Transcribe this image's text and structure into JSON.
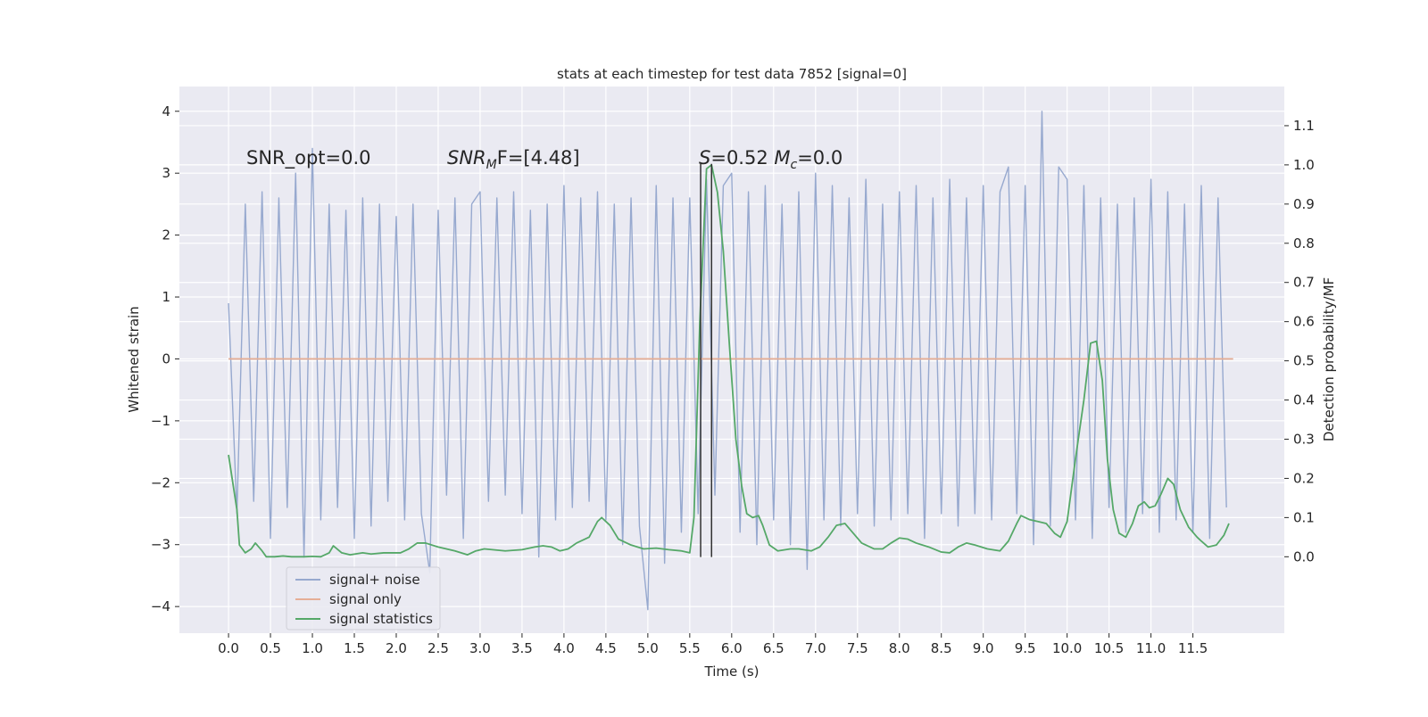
{
  "chart_data": {
    "type": "line",
    "title": "stats at each timestep for test data 7852 [signal=0]",
    "xlabel": "Time (s)",
    "ylabel": "Whitened strain",
    "y2label": "Detection probability/MF",
    "xlim": [
      -0.586,
      12.59
    ],
    "ylim": [
      -4.43,
      4.4
    ],
    "y2lim": [
      -0.195,
      1.2
    ],
    "xticks": [
      {
        "value": 0,
        "label": "0.0"
      },
      0.5,
      {
        "value": 1,
        "label": "1.0"
      },
      1.5,
      {
        "value": 2,
        "label": "2.0"
      },
      2.5,
      {
        "value": 3,
        "label": "3.0"
      },
      3.5,
      {
        "value": 4,
        "label": "4.0"
      },
      4.5,
      {
        "value": 5,
        "label": "5.0"
      },
      5.5,
      {
        "value": 6,
        "label": "6.0"
      },
      6.5,
      {
        "value": 7,
        "label": "7.0"
      },
      7.5,
      {
        "value": 8,
        "label": "8.0"
      },
      8.5,
      {
        "value": 9,
        "label": "9.0"
      },
      9.5,
      {
        "value": 10,
        "label": "10.0"
      },
      10.5,
      {
        "value": 11,
        "label": "11.0"
      },
      11.5
    ],
    "yticks": [
      {
        "value": -4,
        "label": "−4"
      },
      {
        "value": -3,
        "label": "−3"
      },
      {
        "value": -2,
        "label": "−2"
      },
      {
        "value": -1,
        "label": "−1"
      },
      0,
      1,
      2,
      3,
      4
    ],
    "y2ticks": [
      {
        "value": 0,
        "label": "0.0"
      },
      0.1,
      0.2,
      0.3,
      0.4,
      0.5,
      0.6,
      0.7,
      0.8,
      0.9,
      {
        "value": 1,
        "label": "1.0"
      },
      1.1
    ],
    "grid": true,
    "legend": "lower left",
    "series": [
      {
        "name": "signal+ noise",
        "color": "#97a9cf",
        "x": [
          0.0,
          0.1,
          0.2,
          0.3,
          0.4,
          0.5,
          0.6,
          0.7,
          0.8,
          0.9,
          1.0,
          1.1,
          1.2,
          1.3,
          1.4,
          1.5,
          1.6,
          1.7,
          1.8,
          1.9,
          2.0,
          2.1,
          2.2,
          2.3,
          2.4,
          2.5,
          2.6,
          2.7,
          2.8,
          2.9,
          3.0,
          3.1,
          3.2,
          3.3,
          3.4,
          3.5,
          3.6,
          3.7,
          3.8,
          3.9,
          4.0,
          4.1,
          4.2,
          4.3,
          4.4,
          4.5,
          4.6,
          4.7,
          4.8,
          4.9,
          5.0,
          5.1,
          5.2,
          5.3,
          5.4,
          5.5,
          5.6,
          5.7,
          5.8,
          5.9,
          6.0,
          6.1,
          6.2,
          6.3,
          6.4,
          6.5,
          6.6,
          6.7,
          6.8,
          6.9,
          7.0,
          7.1,
          7.2,
          7.3,
          7.4,
          7.5,
          7.6,
          7.7,
          7.8,
          7.9,
          8.0,
          8.1,
          8.2,
          8.3,
          8.4,
          8.5,
          8.6,
          8.7,
          8.8,
          8.9,
          9.0,
          9.1,
          9.2,
          9.3,
          9.4,
          9.5,
          9.6,
          9.7,
          9.8,
          9.9,
          10.0,
          10.1,
          10.2,
          10.3,
          10.4,
          10.5,
          10.6,
          10.7,
          10.8,
          10.9,
          11.0,
          11.1,
          11.2,
          11.3,
          11.4,
          11.5,
          11.6,
          11.7,
          11.8,
          11.9
        ],
        "values": [
          0.9,
          -2.5,
          2.5,
          -2.3,
          2.7,
          -2.9,
          2.6,
          -2.4,
          3.0,
          -3.2,
          3.4,
          -2.6,
          2.5,
          -2.4,
          2.4,
          -2.9,
          2.6,
          -2.7,
          2.5,
          -2.3,
          2.3,
          -2.6,
          2.5,
          -2.5,
          -3.45,
          2.4,
          -2.2,
          2.6,
          -2.9,
          2.5,
          2.7,
          -2.3,
          2.6,
          -2.2,
          2.7,
          -2.5,
          2.4,
          -3.2,
          2.5,
          -2.6,
          2.8,
          -2.4,
          2.6,
          -2.3,
          2.7,
          -2.6,
          2.5,
          -3.0,
          2.6,
          -2.7,
          -4.05,
          2.8,
          -3.3,
          2.6,
          -2.8,
          2.6,
          -2.5,
          2.9,
          -2.2,
          2.8,
          3.0,
          -2.8,
          2.7,
          -3.0,
          2.8,
          -2.6,
          2.5,
          -3.0,
          2.7,
          -3.4,
          3.0,
          -2.6,
          2.8,
          -2.7,
          2.6,
          -2.5,
          2.9,
          -2.7,
          2.5,
          -2.6,
          2.7,
          -2.5,
          2.8,
          -2.9,
          2.6,
          -2.5,
          2.9,
          -2.7,
          2.6,
          -2.5,
          2.8,
          -2.6,
          2.7,
          3.1,
          -2.5,
          2.8,
          -3.0,
          4.0,
          -2.7,
          3.1,
          2.9,
          -2.6,
          2.8,
          -2.9,
          2.6,
          -2.4,
          2.5,
          -2.8,
          2.6,
          -2.5,
          2.9,
          -2.8,
          2.7,
          -2.6,
          2.5,
          -2.8,
          2.8,
          -2.9,
          2.6,
          -2.4
        ]
      },
      {
        "name": "signal only",
        "color": "#e5ae96",
        "x": [
          0.0,
          11.98
        ],
        "values": [
          0,
          0
        ]
      },
      {
        "name": "signal statistics",
        "color": "#55a868",
        "axis": "y2",
        "x": [
          0,
          0.1,
          0.13,
          0.2,
          0.27,
          0.32,
          0.4,
          0.45,
          0.55,
          0.65,
          0.75,
          0.9,
          1.0,
          1.1,
          1.2,
          1.25,
          1.35,
          1.45,
          1.6,
          1.7,
          1.85,
          1.95,
          2.05,
          2.15,
          2.25,
          2.35,
          2.5,
          2.7,
          2.85,
          2.95,
          3.05,
          3.3,
          3.5,
          3.65,
          3.75,
          3.85,
          3.95,
          4.05,
          4.15,
          4.3,
          4.4,
          4.45,
          4.55,
          4.65,
          4.8,
          4.95,
          5.1,
          5.25,
          5.4,
          5.5,
          5.55,
          5.62,
          5.7,
          5.76,
          5.83,
          5.9,
          5.97,
          6.05,
          6.12,
          6.18,
          6.25,
          6.32,
          6.37,
          6.45,
          6.55,
          6.7,
          6.8,
          6.95,
          7.05,
          7.15,
          7.25,
          7.35,
          7.45,
          7.55,
          7.7,
          7.8,
          7.9,
          8.0,
          8.1,
          8.2,
          8.35,
          8.5,
          8.6,
          8.7,
          8.8,
          8.9,
          9.05,
          9.2,
          9.3,
          9.4,
          9.45,
          9.55,
          9.65,
          9.75,
          9.85,
          9.92,
          10.0,
          10.1,
          10.2,
          10.28,
          10.35,
          10.42,
          10.48,
          10.55,
          10.62,
          10.7,
          10.78,
          10.85,
          10.92,
          10.98,
          11.05,
          11.12,
          11.2,
          11.27,
          11.35,
          11.45,
          11.55,
          11.6,
          11.68,
          11.78,
          11.87,
          11.93
        ],
        "values": [
          0.26,
          0.12,
          0.03,
          0.01,
          0.02,
          0.035,
          0.015,
          0.0,
          0.0,
          0.002,
          0.0,
          0.0,
          0.001,
          0.0,
          0.01,
          0.028,
          0.01,
          0.005,
          0.01,
          0.007,
          0.01,
          0.01,
          0.01,
          0.02,
          0.035,
          0.035,
          0.025,
          0.015,
          0.005,
          0.015,
          0.02,
          0.015,
          0.018,
          0.025,
          0.028,
          0.025,
          0.015,
          0.02,
          0.035,
          0.05,
          0.09,
          0.1,
          0.08,
          0.045,
          0.03,
          0.02,
          0.022,
          0.018,
          0.015,
          0.01,
          0.1,
          0.6,
          0.99,
          1.0,
          0.93,
          0.78,
          0.55,
          0.3,
          0.18,
          0.11,
          0.1,
          0.105,
          0.08,
          0.03,
          0.015,
          0.02,
          0.02,
          0.015,
          0.025,
          0.05,
          0.08,
          0.085,
          0.06,
          0.035,
          0.02,
          0.02,
          0.035,
          0.048,
          0.045,
          0.035,
          0.025,
          0.012,
          0.01,
          0.025,
          0.035,
          0.03,
          0.02,
          0.015,
          0.04,
          0.085,
          0.105,
          0.095,
          0.09,
          0.085,
          0.06,
          0.05,
          0.09,
          0.25,
          0.4,
          0.545,
          0.55,
          0.45,
          0.25,
          0.12,
          0.06,
          0.05,
          0.085,
          0.13,
          0.14,
          0.125,
          0.13,
          0.16,
          0.2,
          0.185,
          0.12,
          0.075,
          0.05,
          0.04,
          0.025,
          0.03,
          0.055,
          0.085
        ]
      }
    ],
    "vlines": {
      "x": [
        5.63,
        5.76
      ],
      "y": [
        -3.2,
        3.15
      ],
      "color": "#333333"
    },
    "annotations": [
      [
        {
          "text": "SNR_opt=0.0"
        }
      ],
      [
        {
          "text": "SNR",
          "style": "italic"
        },
        {
          "text": "M",
          "style": "italic-sub"
        },
        {
          "text": "F=[4.48]"
        }
      ],
      [
        {
          "text": "S",
          "style": "italic"
        },
        {
          "text": "=0.52   "
        },
        {
          "text": "M",
          "style": "italic"
        },
        {
          "text": "c",
          "style": "italic-sub"
        },
        {
          "text": "=0.0"
        }
      ]
    ]
  }
}
